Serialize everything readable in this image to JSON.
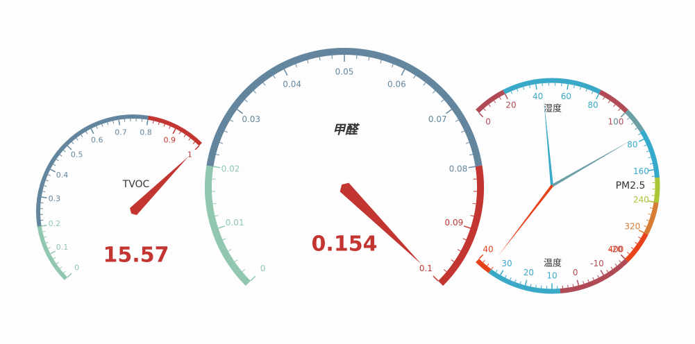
{
  "chart_data": [
    {
      "type": "gauge",
      "title": "TVOC",
      "values": [
        15.57
      ],
      "show_value": true,
      "ylim": [
        0,
        1
      ],
      "yticks": [
        0,
        0.1,
        0.2,
        0.3,
        0.4,
        0.5,
        0.6,
        0.7,
        0.8,
        0.9,
        1
      ],
      "axis_line_colors": [
        [
          0.2,
          "#91c7ae"
        ],
        [
          0.8,
          "#63869e"
        ],
        [
          1,
          "#c23531"
        ]
      ],
      "pointer_color": "#c23531"
    },
    {
      "type": "gauge",
      "title": "甲醛",
      "values": [
        0.154
      ],
      "show_value": true,
      "ylim": [
        0,
        0.1
      ],
      "yticks": [
        0,
        0.01,
        0.02,
        0.03,
        0.04,
        0.05,
        0.06,
        0.07,
        0.08,
        0.09,
        0.1
      ],
      "axis_line_colors": [
        [
          0.2,
          "#91c7ae"
        ],
        [
          0.8,
          "#63869e"
        ],
        [
          1,
          "#c23531"
        ]
      ],
      "pointer_color": "#c23531"
    },
    {
      "type": "gauge",
      "title": "湿度",
      "values": [
        44
      ],
      "show_value": false,
      "ylim": [
        0,
        100
      ],
      "yticks": [
        0,
        20,
        40,
        60,
        80,
        100
      ],
      "axis_line_colors": [
        [
          0.2,
          "#b04a55"
        ],
        [
          0.8,
          "#3aa9c7"
        ],
        [
          1,
          "#b04a55"
        ]
      ],
      "pointer_color": "#3aa9c7"
    },
    {
      "type": "gauge",
      "title": "PM2.5",
      "values": [
        67
      ],
      "show_value": false,
      "ylim": [
        0,
        400
      ],
      "yticks": [
        0,
        80,
        160,
        240,
        320,
        400
      ],
      "axis_line_colors": [
        [
          0.15,
          "#6a9fa6"
        ],
        [
          0.45,
          "#35a9ca"
        ],
        [
          0.6,
          "#a9c636"
        ],
        [
          0.8,
          "#d67c34"
        ],
        [
          1,
          "#e8421b"
        ]
      ],
      "pointer_color": "#6a9fa6"
    },
    {
      "type": "gauge",
      "title": "温度",
      "values": [
        35
      ],
      "show_value": false,
      "ylim": [
        40,
        -20
      ],
      "yticks": [
        40,
        30,
        20,
        10,
        0,
        -10,
        -20
      ],
      "axis_line_colors": [
        [
          0.1,
          "#e8421b"
        ],
        [
          0.55,
          "#3aa9c7"
        ],
        [
          1,
          "#b04a55"
        ]
      ],
      "pointer_color": "#e8421b"
    }
  ]
}
